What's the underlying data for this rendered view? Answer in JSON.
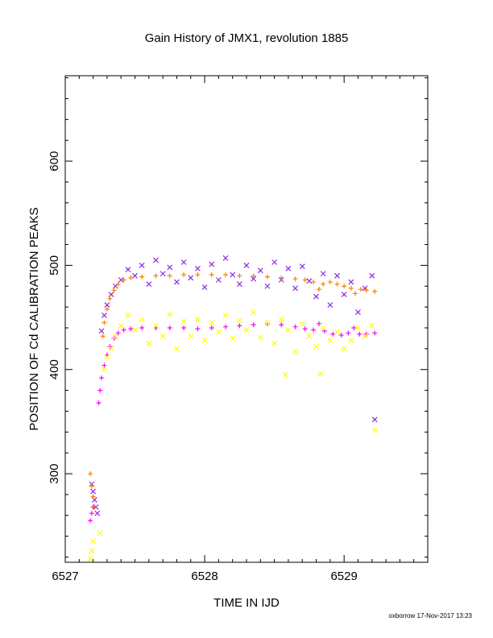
{
  "chart_data": {
    "type": "scatter",
    "title": "Gain History of JMX1, revolution 1885",
    "xlabel": "TIME IN IJD",
    "ylabel": "POSITION OF Cd CALIBRATION PEAKS",
    "xlim": [
      6527.0,
      6529.6
    ],
    "ylim": [
      215,
      682
    ],
    "x_ticks": [
      "6527",
      "6528",
      "6529"
    ],
    "y_ticks": [
      "300",
      "400",
      "500",
      "600"
    ],
    "grid": false,
    "credit": "oxborrow 17-Nov-2017 13:23",
    "colors": {
      "purple": "#8a2be2",
      "orange": "#ff7f00",
      "magenta": "#ff00ff",
      "yellow": "#ffff00"
    },
    "series": [
      {
        "marker": "x",
        "color": "#8a2be2",
        "points": [
          [
            6527.19,
            290
          ],
          [
            6527.2,
            283
          ],
          [
            6527.21,
            275
          ],
          [
            6527.22,
            268
          ],
          [
            6527.23,
            262
          ],
          [
            6527.26,
            437
          ],
          [
            6527.28,
            452
          ],
          [
            6527.3,
            462
          ],
          [
            6527.33,
            472
          ],
          [
            6527.36,
            480
          ],
          [
            6527.4,
            486
          ],
          [
            6527.45,
            496
          ],
          [
            6527.5,
            490
          ],
          [
            6527.55,
            500
          ],
          [
            6527.6,
            482
          ],
          [
            6527.65,
            505
          ],
          [
            6527.7,
            492
          ],
          [
            6527.75,
            498
          ],
          [
            6527.8,
            484
          ],
          [
            6527.85,
            503
          ],
          [
            6527.9,
            488
          ],
          [
            6527.95,
            497
          ],
          [
            6528.0,
            479
          ],
          [
            6528.05,
            501
          ],
          [
            6528.1,
            486
          ],
          [
            6528.15,
            507
          ],
          [
            6528.2,
            491
          ],
          [
            6528.25,
            482
          ],
          [
            6528.3,
            500
          ],
          [
            6528.35,
            487
          ],
          [
            6528.4,
            495
          ],
          [
            6528.45,
            480
          ],
          [
            6528.5,
            503
          ],
          [
            6528.55,
            486
          ],
          [
            6528.6,
            497
          ],
          [
            6528.65,
            478
          ],
          [
            6528.7,
            499
          ],
          [
            6528.75,
            485
          ],
          [
            6528.8,
            470
          ],
          [
            6528.85,
            492
          ],
          [
            6528.9,
            462
          ],
          [
            6528.95,
            490
          ],
          [
            6529.0,
            472
          ],
          [
            6529.05,
            484
          ],
          [
            6529.1,
            455
          ],
          [
            6529.15,
            478
          ],
          [
            6529.2,
            490
          ],
          [
            6529.22,
            352
          ]
        ]
      },
      {
        "marker": "+",
        "color": "#ff7f00",
        "points": [
          [
            6527.18,
            300
          ],
          [
            6527.19,
            288
          ],
          [
            6527.2,
            278
          ],
          [
            6527.21,
            268
          ],
          [
            6527.27,
            432
          ],
          [
            6527.28,
            445
          ],
          [
            6527.3,
            458
          ],
          [
            6527.32,
            468
          ],
          [
            6527.35,
            476
          ],
          [
            6527.38,
            482
          ],
          [
            6527.42,
            486
          ],
          [
            6527.47,
            488
          ],
          [
            6527.55,
            489
          ],
          [
            6527.65,
            490
          ],
          [
            6527.75,
            490
          ],
          [
            6527.85,
            491
          ],
          [
            6527.95,
            491
          ],
          [
            6528.05,
            491
          ],
          [
            6528.15,
            491
          ],
          [
            6528.25,
            490
          ],
          [
            6528.35,
            490
          ],
          [
            6528.45,
            489
          ],
          [
            6528.55,
            488
          ],
          [
            6528.65,
            487
          ],
          [
            6528.72,
            486
          ],
          [
            6528.78,
            484
          ],
          [
            6528.82,
            477
          ],
          [
            6528.85,
            482
          ],
          [
            6528.9,
            484
          ],
          [
            6528.95,
            482
          ],
          [
            6529.0,
            480
          ],
          [
            6529.05,
            478
          ],
          [
            6529.08,
            473
          ],
          [
            6529.12,
            477
          ],
          [
            6529.16,
            476
          ],
          [
            6529.22,
            475
          ]
        ]
      },
      {
        "marker": "+",
        "color": "#ff00ff",
        "points": [
          [
            6527.18,
            255
          ],
          [
            6527.19,
            262
          ],
          [
            6527.2,
            268
          ],
          [
            6527.24,
            368
          ],
          [
            6527.25,
            380
          ],
          [
            6527.26,
            392
          ],
          [
            6527.28,
            404
          ],
          [
            6527.3,
            414
          ],
          [
            6527.32,
            422
          ],
          [
            6527.35,
            430
          ],
          [
            6527.38,
            435
          ],
          [
            6527.42,
            438
          ],
          [
            6527.47,
            439
          ],
          [
            6527.55,
            440
          ],
          [
            6527.65,
            440
          ],
          [
            6527.75,
            440
          ],
          [
            6527.85,
            440
          ],
          [
            6527.95,
            439
          ],
          [
            6528.05,
            440
          ],
          [
            6528.15,
            441
          ],
          [
            6528.25,
            442
          ],
          [
            6528.35,
            443
          ],
          [
            6528.45,
            444
          ],
          [
            6528.55,
            443
          ],
          [
            6528.65,
            441
          ],
          [
            6528.72,
            439
          ],
          [
            6528.78,
            438
          ],
          [
            6528.82,
            444
          ],
          [
            6528.86,
            437
          ],
          [
            6528.92,
            434
          ],
          [
            6528.98,
            433
          ],
          [
            6529.03,
            435
          ],
          [
            6529.07,
            440
          ],
          [
            6529.11,
            434
          ],
          [
            6529.16,
            434
          ],
          [
            6529.22,
            435
          ]
        ]
      },
      {
        "marker": "x",
        "color": "#ffff00",
        "points": [
          [
            6527.18,
            218
          ],
          [
            6527.19,
            226
          ],
          [
            6527.2,
            235
          ],
          [
            6527.25,
            243
          ],
          [
            6527.28,
            400
          ],
          [
            6527.3,
            412
          ],
          [
            6527.33,
            420
          ],
          [
            6527.36,
            432
          ],
          [
            6527.4,
            442
          ],
          [
            6527.45,
            452
          ],
          [
            6527.5,
            438
          ],
          [
            6527.55,
            448
          ],
          [
            6527.6,
            425
          ],
          [
            6527.65,
            442
          ],
          [
            6527.7,
            432
          ],
          [
            6527.75,
            453
          ],
          [
            6527.8,
            420
          ],
          [
            6527.85,
            446
          ],
          [
            6527.9,
            432
          ],
          [
            6527.95,
            448
          ],
          [
            6528.0,
            428
          ],
          [
            6528.05,
            445
          ],
          [
            6528.1,
            436
          ],
          [
            6528.15,
            452
          ],
          [
            6528.2,
            430
          ],
          [
            6528.25,
            447
          ],
          [
            6528.3,
            438
          ],
          [
            6528.35,
            455
          ],
          [
            6528.4,
            431
          ],
          [
            6528.45,
            445
          ],
          [
            6528.5,
            425
          ],
          [
            6528.55,
            448
          ],
          [
            6528.6,
            438
          ],
          [
            6528.65,
            417
          ],
          [
            6528.7,
            444
          ],
          [
            6528.75,
            432
          ],
          [
            6528.8,
            422
          ],
          [
            6528.85,
            440
          ],
          [
            6528.9,
            428
          ],
          [
            6528.95,
            436
          ],
          [
            6529.0,
            420
          ],
          [
            6529.05,
            428
          ],
          [
            6529.1,
            440
          ],
          [
            6529.15,
            432
          ],
          [
            6529.2,
            442
          ],
          [
            6529.22,
            342
          ],
          [
            6528.58,
            395
          ],
          [
            6528.83,
            396
          ]
        ]
      }
    ]
  }
}
